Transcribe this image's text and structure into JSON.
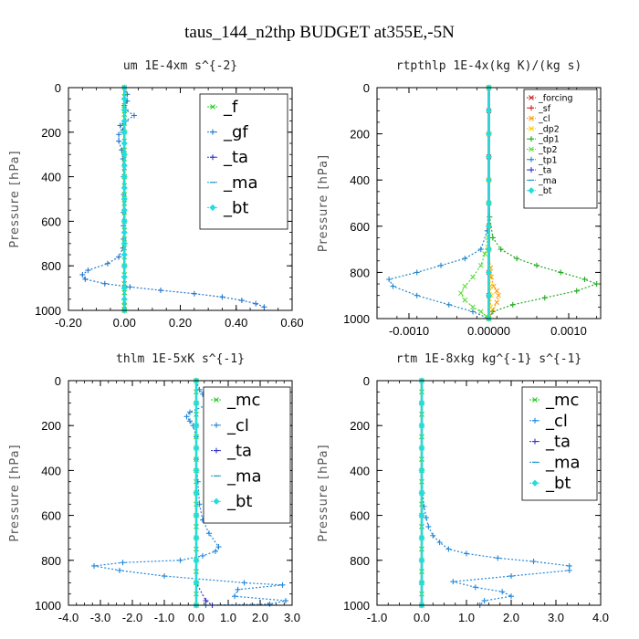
{
  "figure": {
    "title": "taus_144_n2thp  BUDGET at355E,-5N"
  },
  "chart_data": [
    {
      "type": "line",
      "title": "um   1E-4xm s^{-2}",
      "ylabel": "Pressure [hPa]",
      "xlim": [
        -0.2,
        0.6
      ],
      "ylim": [
        1000,
        0
      ],
      "xticks": [
        "-0.20",
        "0.00",
        "0.20",
        "0.40",
        "0.60"
      ],
      "xtick_values": [
        -0.2,
        0.0,
        0.2,
        0.4,
        0.6
      ],
      "yticks": [
        0,
        200,
        400,
        600,
        800,
        1000
      ],
      "legend_style": "big",
      "legend_location": "top-right",
      "series": [
        {
          "name": "_f",
          "color": "#22cc22",
          "marker": "x",
          "x": [
            0,
            0,
            0,
            0,
            0,
            0,
            0,
            0,
            0,
            0,
            0,
            0,
            0,
            0,
            0,
            0,
            0,
            0,
            0,
            0,
            0,
            0,
            0,
            0,
            0,
            0,
            0
          ],
          "y": [
            0,
            40,
            80,
            120,
            160,
            200,
            240,
            280,
            320,
            360,
            400,
            440,
            480,
            520,
            560,
            600,
            640,
            680,
            720,
            760,
            800,
            840,
            880,
            920,
            960,
            980,
            1000
          ]
        },
        {
          "name": "_gf",
          "color": "#2277cc",
          "marker": "+",
          "x": [
            0.0,
            0.01,
            0.01,
            0.0,
            0.005,
            0.035,
            0.005,
            -0.015,
            -0.005,
            -0.02,
            -0.02,
            -0.01,
            -0.005,
            -0.003,
            -0.003,
            -0.003,
            -0.003,
            -0.003,
            -0.005,
            -0.02,
            -0.06,
            -0.13,
            -0.15,
            -0.14,
            -0.07,
            0.02,
            0.13,
            0.25,
            0.35,
            0.42,
            0.47,
            0.5
          ],
          "y": [
            0,
            30,
            60,
            80,
            100,
            125,
            150,
            170,
            190,
            210,
            240,
            280,
            320,
            400,
            480,
            560,
            620,
            680,
            720,
            760,
            790,
            820,
            840,
            860,
            880,
            895,
            910,
            925,
            940,
            955,
            970,
            985
          ]
        },
        {
          "name": "_ta",
          "color": "#3333cc",
          "marker": "+",
          "x": [
            0,
            0,
            0,
            0,
            0,
            0,
            0,
            0,
            0,
            0,
            0
          ],
          "y": [
            0,
            100,
            200,
            300,
            400,
            500,
            600,
            700,
            800,
            900,
            1000
          ]
        },
        {
          "name": "_ma",
          "color": "#2299cc",
          "marker": "-",
          "x": [
            0,
            0,
            0,
            0,
            0,
            0,
            0,
            0,
            0,
            0,
            0
          ],
          "y": [
            0,
            100,
            200,
            300,
            400,
            500,
            600,
            700,
            800,
            900,
            1000
          ]
        },
        {
          "name": "_bt",
          "color": "#22dddd",
          "marker": "diamond",
          "x": [
            0,
            0,
            0,
            0,
            0,
            0,
            0,
            0,
            0,
            0,
            0,
            0,
            0,
            0,
            0,
            0,
            0,
            0,
            0,
            0,
            0
          ],
          "y": [
            0,
            50,
            100,
            150,
            200,
            250,
            300,
            350,
            400,
            450,
            500,
            550,
            600,
            650,
            700,
            750,
            800,
            850,
            900,
            950,
            1000
          ]
        }
      ]
    },
    {
      "type": "line",
      "title": "rtpthlp   1E-4x(kg K)/(kg s)",
      "ylabel": "Pressure [hPa]",
      "xlim": [
        -0.0014,
        0.0014
      ],
      "ylim": [
        1000,
        0
      ],
      "xticks": [
        "-0.0010",
        "0.00000",
        "0.0010"
      ],
      "xtick_values": [
        -0.001,
        0.0,
        0.001
      ],
      "yticks": [
        0,
        200,
        400,
        600,
        800,
        1000
      ],
      "legend_style": "small",
      "legend_location": "top-right",
      "series": [
        {
          "name": "_forcing",
          "color": "#cc2222",
          "marker": "x",
          "x": [
            0,
            0,
            0,
            0,
            0,
            0,
            0,
            0,
            0,
            0,
            0
          ],
          "y": [
            0,
            100,
            200,
            300,
            400,
            500,
            600,
            700,
            800,
            900,
            1000
          ]
        },
        {
          "name": "_sf",
          "color": "#dd2222",
          "marker": "+",
          "x": [
            0,
            0,
            0,
            0,
            0,
            0,
            0,
            0,
            0,
            0,
            0
          ],
          "y": [
            0,
            100,
            200,
            300,
            400,
            500,
            600,
            700,
            800,
            900,
            1000
          ]
        },
        {
          "name": "_cl",
          "color": "#ff9900",
          "marker": "x",
          "x": [
            0,
            0,
            0,
            0,
            0,
            2e-05,
            3e-05,
            6e-05,
            0.0001,
            0.00012,
            0.0001,
            5e-05,
            0.0
          ],
          "y": [
            0,
            200,
            400,
            600,
            700,
            780,
            820,
            860,
            880,
            900,
            930,
            960,
            1000
          ]
        },
        {
          "name": "_dp2",
          "color": "#ffcc00",
          "marker": "x",
          "x": [
            0,
            0,
            0,
            0,
            1e-05,
            2e-05,
            3e-05,
            2e-05,
            0.0
          ],
          "y": [
            0,
            200,
            400,
            700,
            800,
            860,
            900,
            950,
            1000
          ]
        },
        {
          "name": "_dp1",
          "color": "#22aa22",
          "marker": "+",
          "x": [
            0,
            0,
            1e-05,
            5e-05,
            0.00015,
            0.00035,
            0.0006,
            0.0009,
            0.0012,
            0.00135,
            0.0011,
            0.0007,
            0.0003,
            5e-05,
            0.0
          ],
          "y": [
            0,
            400,
            560,
            650,
            700,
            740,
            770,
            800,
            830,
            850,
            880,
            910,
            940,
            970,
            1000
          ]
        },
        {
          "name": "_tp2",
          "color": "#55dd33",
          "marker": "x",
          "x": [
            0,
            0,
            -1e-05,
            -5e-05,
            -0.0001,
            -0.0002,
            -0.0003,
            -0.00035,
            -0.0003,
            -0.0002,
            -0.0001,
            -3e-05,
            0.0
          ],
          "y": [
            0,
            500,
            650,
            720,
            770,
            820,
            860,
            890,
            920,
            950,
            970,
            990,
            1000
          ]
        },
        {
          "name": "_tp1",
          "color": "#2288cc",
          "marker": "+",
          "x": [
            0,
            0,
            -2e-05,
            -0.0001,
            -0.0003,
            -0.0006,
            -0.0009,
            -0.00125,
            -0.0012,
            -0.0009,
            -0.0005,
            -0.0002,
            0.0
          ],
          "y": [
            0,
            500,
            620,
            700,
            740,
            770,
            800,
            830,
            860,
            900,
            940,
            970,
            1000
          ]
        },
        {
          "name": "_ta",
          "color": "#3333cc",
          "marker": "+",
          "x": [
            0,
            0,
            0,
            0,
            0,
            0,
            0,
            0,
            0,
            0,
            0
          ],
          "y": [
            0,
            100,
            200,
            300,
            400,
            500,
            600,
            700,
            800,
            900,
            1000
          ]
        },
        {
          "name": "_ma",
          "color": "#2299cc",
          "marker": "-",
          "x": [
            0,
            0,
            0,
            0,
            0,
            0,
            0,
            0,
            0,
            0,
            0
          ],
          "y": [
            0,
            100,
            200,
            300,
            400,
            500,
            600,
            700,
            800,
            900,
            1000
          ]
        },
        {
          "name": "_bt",
          "color": "#22dddd",
          "marker": "diamond",
          "x": [
            0,
            0,
            0,
            0,
            0,
            0,
            0,
            0,
            0,
            0,
            0
          ],
          "y": [
            0,
            100,
            200,
            300,
            400,
            500,
            600,
            700,
            800,
            900,
            1000
          ]
        }
      ]
    },
    {
      "type": "line",
      "title": "thlm   1E-5xK  s^{-1}",
      "ylabel": "Pressure [hPa]",
      "xlim": [
        -4.0,
        3.0
      ],
      "ylim": [
        1000,
        0
      ],
      "xticks": [
        "-4.0",
        "-3.0",
        "-2.0",
        "-1.0",
        "0.0",
        "1.0",
        "2.0",
        "3.0"
      ],
      "xtick_values": [
        -4,
        -3,
        -2,
        -1,
        0,
        1,
        2,
        3
      ],
      "yticks": [
        0,
        200,
        400,
        600,
        800,
        1000
      ],
      "legend_style": "big",
      "legend_location": "top-right",
      "series": [
        {
          "name": "_mc",
          "color": "#22cc22",
          "marker": "x",
          "x": [
            0,
            0,
            0,
            0,
            0,
            0,
            0,
            0,
            0,
            0,
            0,
            0,
            0,
            0,
            0,
            0,
            0,
            0,
            0,
            0,
            0
          ],
          "y": [
            0,
            50,
            100,
            150,
            200,
            250,
            300,
            350,
            400,
            450,
            500,
            550,
            600,
            650,
            700,
            750,
            800,
            850,
            900,
            950,
            1000
          ]
        },
        {
          "name": "_cl",
          "color": "#2288dd",
          "marker": "+",
          "x": [
            0,
            0.1,
            0.2,
            0.6,
            0.3,
            -0.2,
            -0.3,
            -0.2,
            -0.1,
            0,
            0,
            0.05,
            0.1,
            0.2,
            0.4,
            0.7,
            0.6,
            0.2,
            -0.5,
            -2.3,
            -3.2,
            -2.4,
            -1.0,
            1.5,
            2.7,
            1.3,
            1.2,
            2.8,
            2.3,
            0.3
          ],
          "y": [
            0,
            40,
            60,
            80,
            110,
            140,
            160,
            180,
            200,
            250,
            350,
            450,
            550,
            620,
            680,
            740,
            760,
            780,
            800,
            810,
            825,
            845,
            870,
            900,
            910,
            930,
            960,
            980,
            995,
            1000
          ]
        },
        {
          "name": "_ta",
          "color": "#3333cc",
          "marker": "+",
          "x": [
            0,
            0,
            0,
            0,
            0,
            0,
            0,
            0,
            0,
            0,
            0.3,
            0.5
          ],
          "y": [
            0,
            100,
            200,
            300,
            400,
            500,
            600,
            700,
            800,
            900,
            980,
            1000
          ]
        },
        {
          "name": "_ma",
          "color": "#2299cc",
          "marker": "-",
          "x": [
            0,
            0,
            0,
            0,
            0,
            0,
            0,
            0,
            0,
            0,
            0
          ],
          "y": [
            0,
            100,
            200,
            300,
            400,
            500,
            600,
            700,
            800,
            900,
            1000
          ]
        },
        {
          "name": "_bt",
          "color": "#22dddd",
          "marker": "diamond",
          "x": [
            0,
            0,
            0,
            0,
            0,
            0,
            0,
            0,
            0,
            0,
            0
          ],
          "y": [
            0,
            100,
            200,
            300,
            400,
            500,
            600,
            700,
            800,
            900,
            1000
          ]
        }
      ]
    },
    {
      "type": "line",
      "title": "rtm   1E-8xkg kg^{-1} s^{-1}",
      "ylabel": "Pressure [hPa]",
      "xlim": [
        -1.0,
        4.0
      ],
      "ylim": [
        1000,
        0
      ],
      "xticks": [
        "-1.0",
        "0.0",
        "1.0",
        "2.0",
        "3.0",
        "4.0"
      ],
      "xtick_values": [
        -1,
        0,
        1,
        2,
        3,
        4
      ],
      "yticks": [
        0,
        200,
        400,
        600,
        800,
        1000
      ],
      "legend_style": "big",
      "legend_location": "top-right",
      "series": [
        {
          "name": "_mc",
          "color": "#22cc22",
          "marker": "x",
          "x": [
            0,
            0,
            0,
            0,
            0,
            0,
            0,
            0,
            0,
            0,
            0,
            0,
            0,
            0,
            0,
            0,
            0,
            0,
            0,
            0,
            0
          ],
          "y": [
            0,
            50,
            100,
            150,
            200,
            250,
            300,
            350,
            400,
            450,
            500,
            550,
            600,
            650,
            700,
            750,
            800,
            850,
            900,
            950,
            1000
          ]
        },
        {
          "name": "_cl",
          "color": "#2288dd",
          "marker": "+",
          "x": [
            0,
            0,
            0,
            0,
            0,
            0.02,
            0.05,
            0.1,
            0.15,
            0.25,
            0.4,
            0.6,
            1.0,
            1.7,
            2.5,
            3.3,
            3.3,
            2.0,
            0.7,
            1.2,
            1.8,
            2.0,
            1.4,
            1.3
          ],
          "y": [
            0,
            100,
            200,
            300,
            400,
            500,
            560,
            610,
            650,
            690,
            720,
            750,
            770,
            790,
            805,
            825,
            845,
            870,
            895,
            920,
            940,
            960,
            980,
            1000
          ]
        },
        {
          "name": "_ta",
          "color": "#3333cc",
          "marker": "+",
          "x": [
            0,
            0,
            0,
            0,
            0,
            0,
            0,
            0,
            0,
            0,
            0
          ],
          "y": [
            0,
            100,
            200,
            300,
            400,
            500,
            600,
            700,
            800,
            900,
            1000
          ]
        },
        {
          "name": "_ma",
          "color": "#2299cc",
          "marker": "-",
          "x": [
            0,
            0,
            0,
            0,
            0,
            0,
            0,
            0,
            0,
            0,
            0
          ],
          "y": [
            0,
            100,
            200,
            300,
            400,
            500,
            600,
            700,
            800,
            900,
            1000
          ]
        },
        {
          "name": "_bt",
          "color": "#22dddd",
          "marker": "diamond",
          "x": [
            0,
            0,
            0,
            0,
            0,
            0,
            0,
            0,
            0,
            0,
            0
          ],
          "y": [
            0,
            100,
            200,
            300,
            400,
            500,
            600,
            700,
            800,
            900,
            1000
          ]
        }
      ]
    }
  ]
}
